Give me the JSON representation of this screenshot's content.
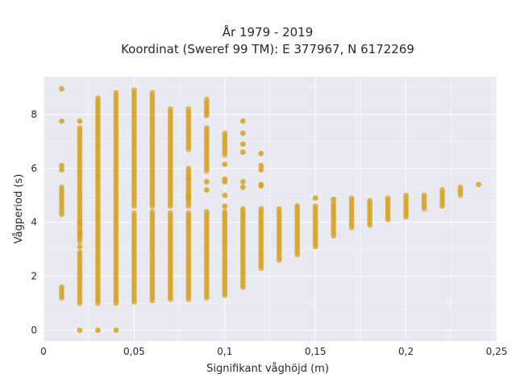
{
  "chart_data": {
    "type": "scatter",
    "title_line1": "År 1979 - 2019",
    "title_line2": "Koordinat (Sweref 99 TM): E 377967, N 6172269",
    "xlabel": "Signifikant våghöjd (m)",
    "ylabel": "Vågperiod (s)",
    "xlim": [
      0,
      0.25
    ],
    "ylim": [
      -0.4,
      9.4
    ],
    "x_ticks": [
      {
        "value": 0,
        "label": "0"
      },
      {
        "value": 0.05,
        "label": "0,05"
      },
      {
        "value": 0.1,
        "label": "0,1"
      },
      {
        "value": 0.15,
        "label": "0,15"
      },
      {
        "value": 0.2,
        "label": "0,2"
      },
      {
        "value": 0.25,
        "label": "0,25"
      }
    ],
    "y_ticks": [
      {
        "value": 0,
        "label": "0"
      },
      {
        "value": 2,
        "label": "2"
      },
      {
        "value": 4,
        "label": "4"
      },
      {
        "value": 6,
        "label": "6"
      },
      {
        "value": 8,
        "label": "8"
      }
    ],
    "grid": true,
    "colors": {
      "background": "#e9e9f1",
      "grid": "#ffffff",
      "marker": "#d6a21f"
    },
    "columns": [
      {
        "x": 0.01,
        "bands": [
          [
            1.2,
            1.6
          ],
          [
            4.3,
            5.3
          ]
        ],
        "points": [
          8.95,
          7.75,
          6.1,
          5.95
        ]
      },
      {
        "x": 0.02,
        "bands": [
          [
            1.0,
            2.9
          ],
          [
            3.3,
            7.55
          ]
        ],
        "points": [
          7.75,
          4.0,
          3.6,
          3.1,
          0.0
        ]
      },
      {
        "x": 0.03,
        "bands": [
          [
            1.0,
            8.6
          ]
        ],
        "points": [
          0.0
        ]
      },
      {
        "x": 0.04,
        "bands": [
          [
            1.0,
            8.8
          ]
        ],
        "points": [
          0.0
        ]
      },
      {
        "x": 0.05,
        "bands": [
          [
            1.05,
            4.4
          ],
          [
            4.6,
            8.95
          ]
        ],
        "points": []
      },
      {
        "x": 0.06,
        "bands": [
          [
            1.1,
            4.4
          ],
          [
            4.6,
            8.85
          ]
        ],
        "points": []
      },
      {
        "x": 0.07,
        "bands": [
          [
            1.15,
            4.4
          ],
          [
            4.6,
            8.2
          ]
        ],
        "points": []
      },
      {
        "x": 0.08,
        "bands": [
          [
            1.15,
            4.4
          ],
          [
            6.7,
            8.25
          ],
          [
            4.6,
            6.0
          ]
        ],
        "points": [
          4.9,
          5.6,
          5.0
        ]
      },
      {
        "x": 0.09,
        "bands": [
          [
            1.2,
            4.4
          ],
          [
            5.9,
            7.5
          ],
          [
            7.95,
            8.55
          ]
        ],
        "points": [
          5.5,
          5.2,
          8.1
        ]
      },
      {
        "x": 0.1,
        "bands": [
          [
            1.3,
            4.4
          ],
          [
            6.5,
            7.3
          ]
        ],
        "points": [
          6.15,
          5.6,
          5.5,
          5.0,
          4.6
        ]
      },
      {
        "x": 0.11,
        "bands": [
          [
            1.6,
            4.5
          ]
        ],
        "points": [
          7.75,
          7.3,
          6.9,
          6.6,
          5.5,
          5.3
        ]
      },
      {
        "x": 0.12,
        "bands": [
          [
            2.3,
            4.5
          ]
        ],
        "points": [
          6.55,
          6.1,
          5.95,
          5.4,
          5.35
        ]
      },
      {
        "x": 0.13,
        "bands": [
          [
            2.6,
            4.5
          ]
        ],
        "points": []
      },
      {
        "x": 0.14,
        "bands": [
          [
            2.8,
            4.5
          ]
        ],
        "points": [
          4.6
        ]
      },
      {
        "x": 0.15,
        "bands": [
          [
            3.1,
            4.6
          ]
        ],
        "points": [
          4.9
        ]
      },
      {
        "x": 0.16,
        "bands": [
          [
            3.5,
            4.7
          ]
        ],
        "points": [
          4.85
        ]
      },
      {
        "x": 0.17,
        "bands": [
          [
            3.8,
            4.9
          ]
        ],
        "points": []
      },
      {
        "x": 0.18,
        "bands": [
          [
            3.9,
            4.8
          ]
        ],
        "points": []
      },
      {
        "x": 0.19,
        "bands": [
          [
            4.1,
            4.9
          ]
        ],
        "points": []
      },
      {
        "x": 0.2,
        "bands": [
          [
            4.2,
            5.0
          ]
        ],
        "points": []
      },
      {
        "x": 0.21,
        "bands": [
          [
            4.5,
            5.0
          ]
        ],
        "points": []
      },
      {
        "x": 0.22,
        "bands": [
          [
            4.6,
            5.2
          ]
        ],
        "points": []
      },
      {
        "x": 0.23,
        "bands": [
          [
            5.0,
            5.3
          ]
        ],
        "points": []
      },
      {
        "x": 0.24,
        "bands": [],
        "points": [
          5.4
        ]
      }
    ]
  }
}
